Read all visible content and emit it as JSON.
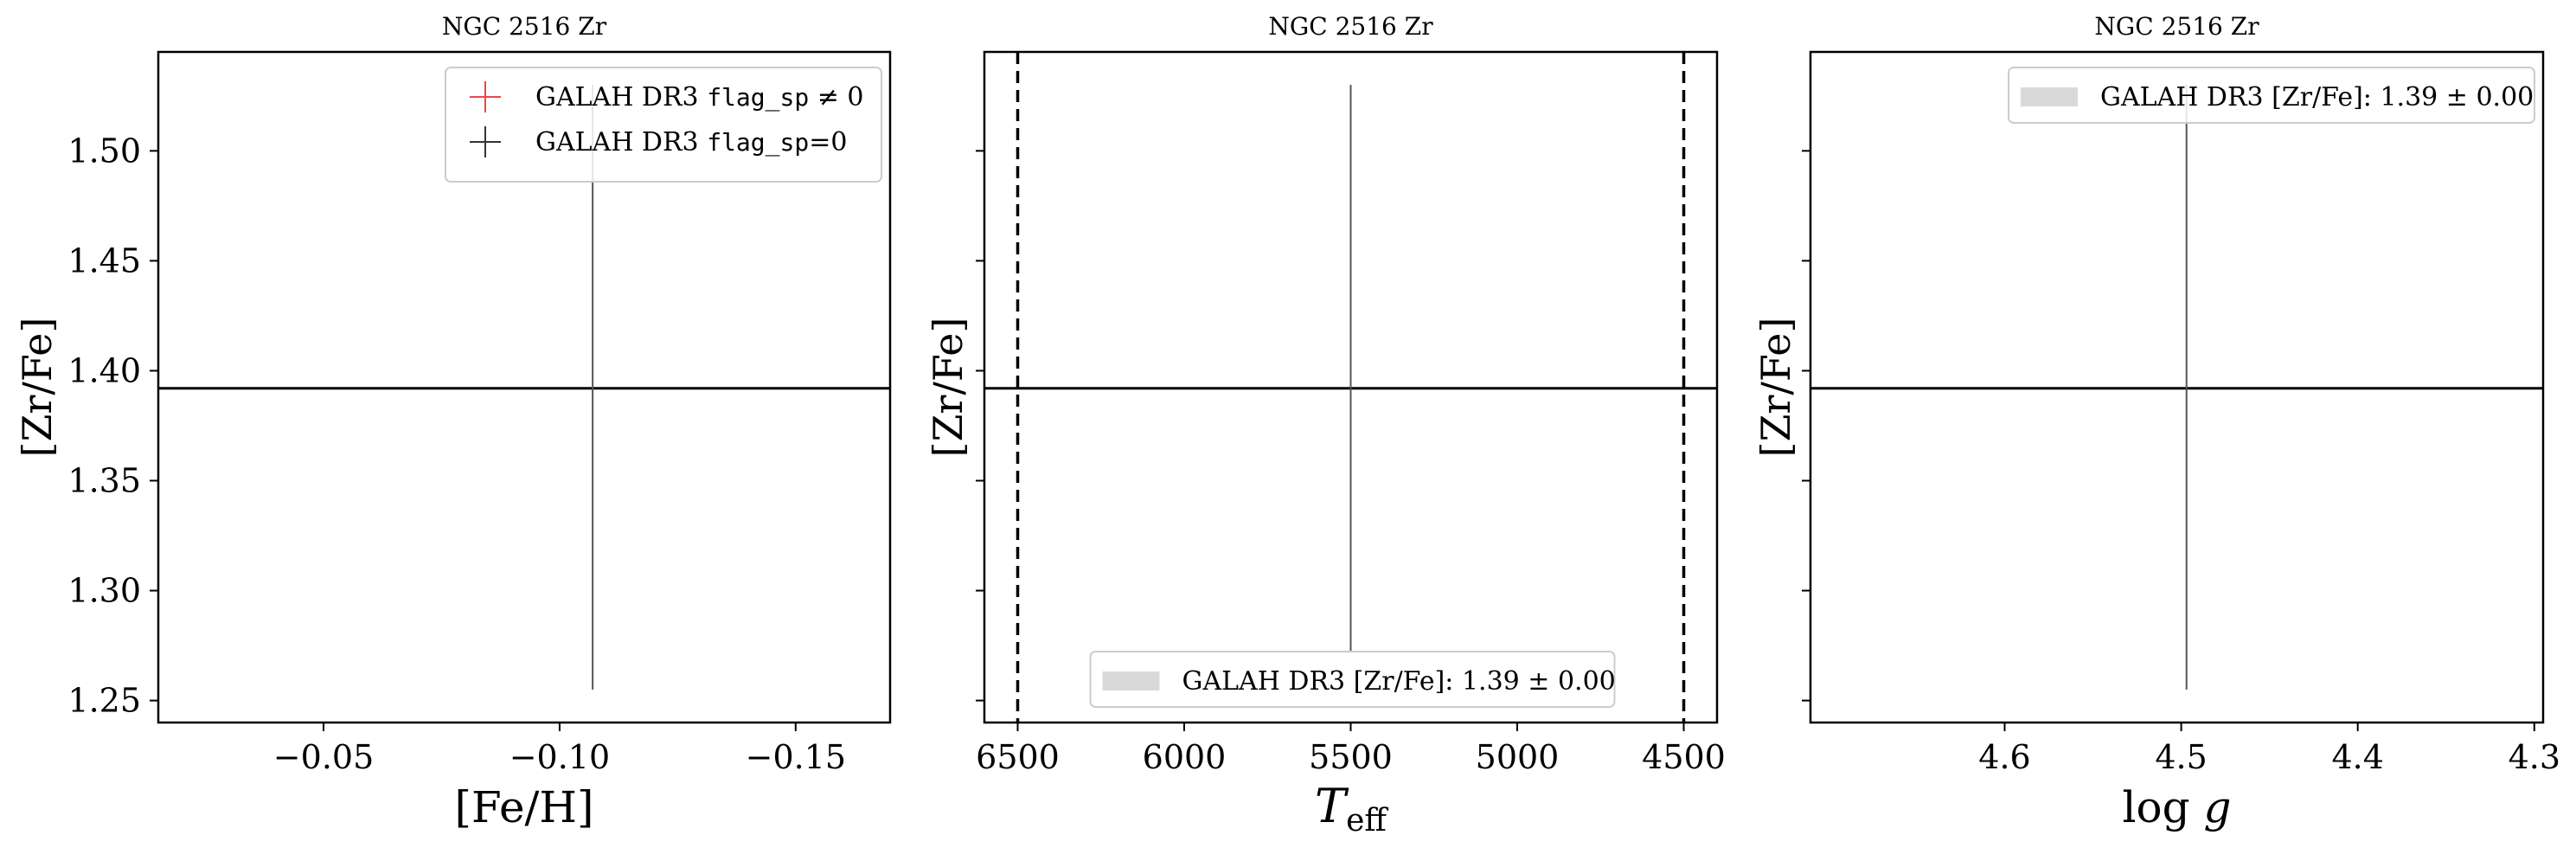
{
  "chart_data": [
    {
      "type": "scatter",
      "title": "NGC 2516 Zr",
      "xlabel": "[Fe/H]",
      "ylabel": "[Zr/Fe]",
      "xlim": [
        -0.015,
        -0.17
      ],
      "ylim": [
        1.24,
        1.545
      ],
      "xticks": [
        -0.05,
        -0.1,
        -0.15
      ],
      "xtick_labels": [
        "−0.05",
        "−0.10",
        "−0.15"
      ],
      "yticks": [
        1.25,
        1.3,
        1.35,
        1.4,
        1.45,
        1.5
      ],
      "ytick_labels": [
        "1.25",
        "1.30",
        "1.35",
        "1.40",
        "1.45",
        "1.50"
      ],
      "hlines": [
        1.392
      ],
      "vlines": [],
      "points": [
        {
          "x": -0.107,
          "y": 1.392,
          "yerr_low": 1.255,
          "yerr_high": 1.53,
          "color": "#555555"
        }
      ],
      "legend": {
        "position": "top-right",
        "entries": [
          {
            "label": "GALAH DR3 flag_sp ≠ 0",
            "label_text": "GALAH DR3 ",
            "label_code": "flag_sp",
            "label_suffix": " ≠ 0",
            "marker": "plus",
            "color": "#e8484f"
          },
          {
            "label": "GALAH DR3 flag_sp=0",
            "label_text": "GALAH DR3 ",
            "label_code": "flag_sp",
            "label_suffix": "=0",
            "marker": "plus",
            "color": "#333333"
          }
        ]
      },
      "show_yticklabels": true
    },
    {
      "type": "scatter",
      "title": "NGC 2516 Zr",
      "xlabel": "T_eff",
      "xlabel_main": "T",
      "xlabel_sub": "eff",
      "ylabel": "[Zr/Fe]",
      "xlim": [
        6600,
        4400
      ],
      "ylim": [
        1.24,
        1.545
      ],
      "xticks": [
        6500,
        6000,
        5500,
        5000,
        4500
      ],
      "xtick_labels": [
        "6500",
        "6000",
        "5500",
        "5000",
        "4500"
      ],
      "yticks": [
        1.25,
        1.3,
        1.35,
        1.4,
        1.45,
        1.5
      ],
      "ytick_labels": [],
      "hlines": [
        1.392
      ],
      "vlines": [
        6500,
        4500
      ],
      "points": [
        {
          "x": 5500,
          "y": 1.392,
          "yerr_low": 1.272,
          "yerr_high": 1.53,
          "color": "#555555"
        }
      ],
      "legend": {
        "position": "bottom-center",
        "entries": [
          {
            "label": "GALAH DR3 [Zr/Fe]: 1.39 ± 0.00",
            "marker": "patch",
            "color": "#d9d9d9"
          }
        ]
      },
      "show_yticklabels": false
    },
    {
      "type": "scatter",
      "title": "NGC 2516 Zr",
      "xlabel": "log g",
      "xlabel_main": "log ",
      "xlabel_sub": "g",
      "ylabel": "[Zr/Fe]",
      "xlim": [
        4.71,
        4.295
      ],
      "ylim": [
        1.24,
        1.545
      ],
      "xticks": [
        4.6,
        4.5,
        4.4,
        4.3
      ],
      "xtick_labels": [
        "4.6",
        "4.5",
        "4.4",
        "4.3"
      ],
      "yticks": [
        1.25,
        1.3,
        1.35,
        1.4,
        1.45,
        1.5
      ],
      "ytick_labels": [],
      "hlines": [
        1.392
      ],
      "vlines": [],
      "points": [
        {
          "x": 4.497,
          "y": 1.392,
          "yerr_low": 1.255,
          "yerr_high": 1.53,
          "color": "#555555"
        }
      ],
      "legend": {
        "position": "top-right",
        "entries": [
          {
            "label": "GALAH DR3 [Zr/Fe]: 1.39 ± 0.00",
            "marker": "patch",
            "color": "#d9d9d9"
          }
        ]
      },
      "show_yticklabels": false
    }
  ]
}
